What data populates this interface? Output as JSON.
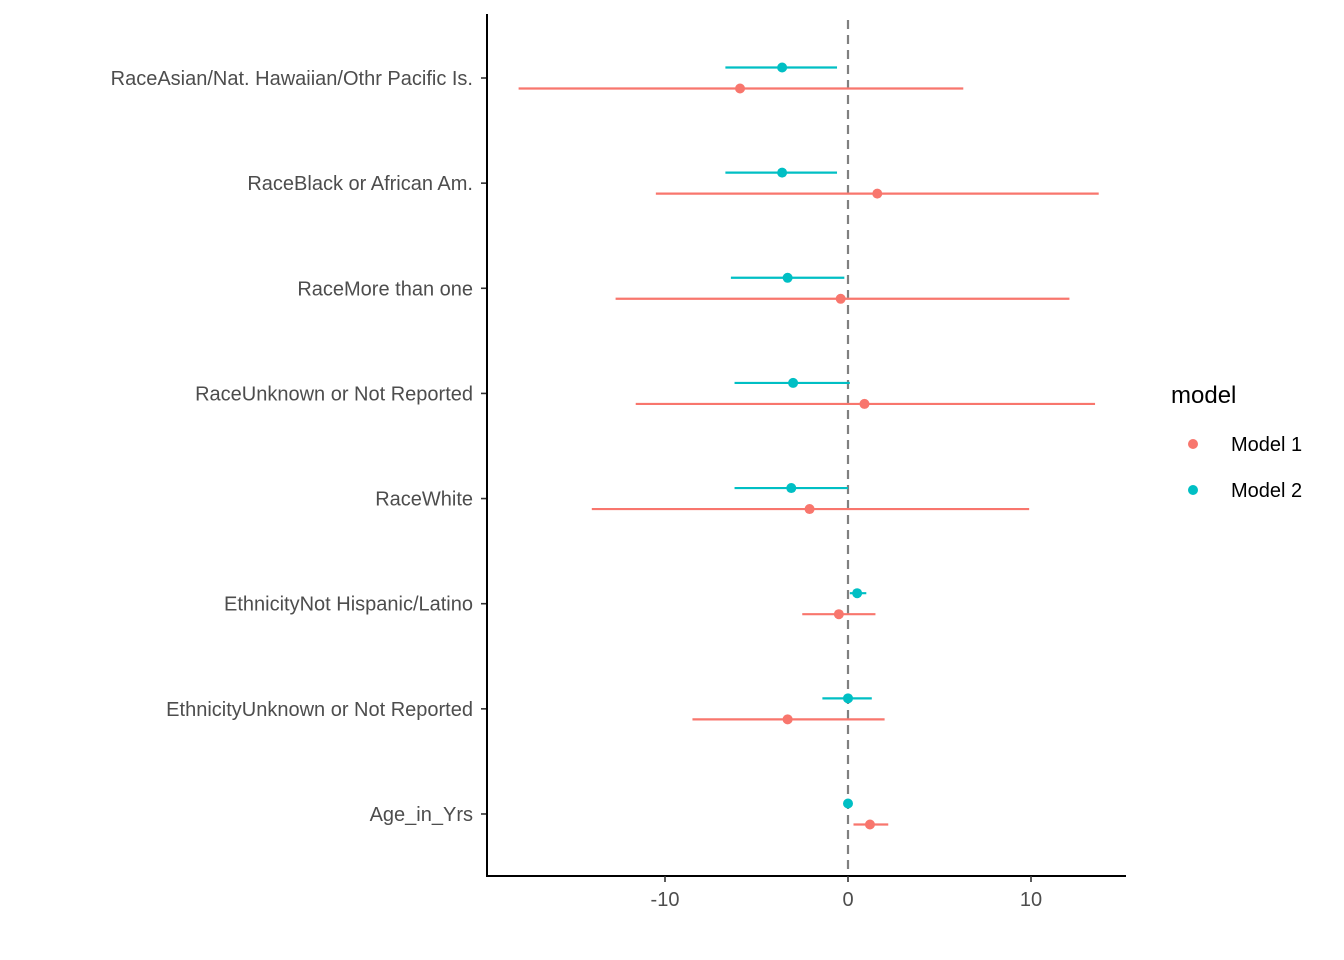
{
  "chart_data": {
    "type": "scatter",
    "subtype": "coefficient-plot",
    "title": "",
    "xlabel": "",
    "ylabel": "",
    "xlim": [
      -19.2,
      15.5
    ],
    "xticks": [
      -10,
      0,
      10
    ],
    "x_tick_labels": [
      "-10",
      "0",
      "10"
    ],
    "reference_line": {
      "x": 0,
      "style": "dashed",
      "color": "#808080"
    },
    "grid": false,
    "categories": [
      "RaceAsian/Nat. Hawaiian/Othr Pacific Is.",
      "RaceBlack or African Am.",
      "RaceMore than one",
      "RaceUnknown or Not Reported",
      "RaceWhite",
      "EthnicityNot Hispanic/Latino",
      "EthnicityUnknown or Not Reported",
      "Age_in_Yrs"
    ],
    "legend": {
      "title": "model",
      "placement": "right"
    },
    "series": [
      {
        "name": "Model 1",
        "color": "#F8766D",
        "estimate": [
          -5.9,
          1.6,
          -0.4,
          0.9,
          -2.1,
          -0.5,
          -3.3,
          1.2
        ],
        "lower": [
          -18.0,
          -10.5,
          -12.7,
          -11.6,
          -14.0,
          -2.5,
          -8.5,
          0.3
        ],
        "upper": [
          6.3,
          13.7,
          12.1,
          13.5,
          9.9,
          1.5,
          2.0,
          2.2
        ]
      },
      {
        "name": "Model 2",
        "color": "#00BFC4",
        "estimate": [
          -3.6,
          -3.6,
          -3.3,
          -3.0,
          -3.1,
          0.5,
          0.0,
          0.0
        ],
        "lower": [
          -6.7,
          -6.7,
          -6.4,
          -6.2,
          -6.2,
          0.1,
          -1.4,
          -0.05
        ],
        "upper": [
          -0.6,
          -0.6,
          -0.2,
          0.1,
          0.0,
          1.0,
          1.3,
          0.05
        ]
      }
    ]
  }
}
